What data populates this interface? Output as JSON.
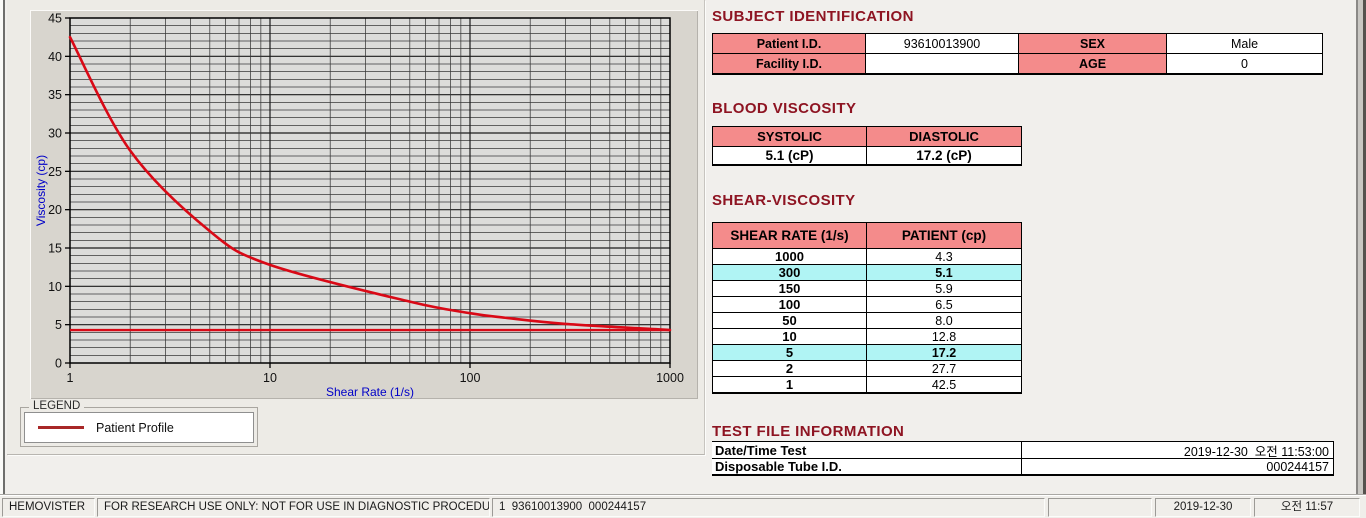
{
  "window": {
    "app_name": "HEMOVISTER"
  },
  "colors": {
    "page_bg": "#f1efec",
    "chart_panel_bg": "#d8d5ce",
    "plot_bg": "#dcdcda",
    "grid": "#303030",
    "curve_red": "#d90916",
    "axis_label_blue": "#0000c8",
    "section_title_red": "#8e1422",
    "table_header_pink": "#f48b8b",
    "highlight_cyan": "#b0f4f4",
    "legend_line_red": "#a82828"
  },
  "chart": {
    "legend_group_label": "LEGEND",
    "legend_series_label": "Patient Profile"
  },
  "chart_data": {
    "type": "line",
    "title": "",
    "xlabel": "Shear Rate (1/s)",
    "ylabel": "Viscosity (cp)",
    "xscale": "log",
    "xlim": [
      1,
      1000
    ],
    "ylim": [
      0,
      45
    ],
    "x_ticks": [
      1,
      10,
      100,
      1000
    ],
    "y_major_step": 5,
    "y_minor_step": 1,
    "grid": true,
    "legend_position": "below-left",
    "series": [
      {
        "name": "Patient Profile",
        "x": [
          1,
          2,
          5,
          10,
          50,
          100,
          150,
          300,
          1000
        ],
        "y": [
          42.5,
          27.7,
          17.2,
          12.8,
          8.0,
          6.5,
          5.9,
          5.1,
          4.3
        ],
        "color": "#d90916"
      }
    ],
    "baseline_y": 4.3,
    "baseline_color": "#d90916"
  },
  "subject_identification": {
    "title": "SUBJECT IDENTIFICATION",
    "rows": [
      {
        "label1": "Patient I.D.",
        "value1": "93610013900",
        "label2": "SEX",
        "value2": "Male"
      },
      {
        "label1": "Facility I.D.",
        "value1": "",
        "label2": "AGE",
        "value2": "0"
      }
    ]
  },
  "blood_viscosity": {
    "title": "BLOOD VISCOSITY",
    "headers": [
      "SYSTOLIC",
      "DIASTOLIC"
    ],
    "values": [
      "5.1 (cP)",
      "17.2 (cP)"
    ]
  },
  "shear_viscosity": {
    "title": "SHEAR-VISCOSITY",
    "headers": [
      "SHEAR RATE (1/s)",
      "PATIENT (cp)"
    ],
    "rows": [
      {
        "shear_rate": "1000",
        "patient": "4.3",
        "highlight": false
      },
      {
        "shear_rate": "300",
        "patient": "5.1",
        "highlight": true
      },
      {
        "shear_rate": "150",
        "patient": "5.9",
        "highlight": false
      },
      {
        "shear_rate": "100",
        "patient": "6.5",
        "highlight": false
      },
      {
        "shear_rate": "50",
        "patient": "8.0",
        "highlight": false
      },
      {
        "shear_rate": "10",
        "patient": "12.8",
        "highlight": false
      },
      {
        "shear_rate": "5",
        "patient": "17.2",
        "highlight": true
      },
      {
        "shear_rate": "2",
        "patient": "27.7",
        "highlight": false
      },
      {
        "shear_rate": "1",
        "patient": "42.5",
        "highlight": false
      }
    ]
  },
  "test_file_information": {
    "title": "TEST FILE INFORMATION",
    "rows": [
      {
        "label": "Date/Time Test",
        "value": "2019-12-30  오전 11:53:00"
      },
      {
        "label": "Disposable Tube I.D.",
        "value": "000244157"
      }
    ]
  },
  "status_bar": {
    "panels": [
      "HEMOVISTER",
      "FOR RESEARCH USE ONLY: NOT FOR USE IN DIAGNOSTIC PROCEDURES",
      "1  93610013900  000244157",
      "",
      "2019-12-30",
      "오전 11:57"
    ]
  }
}
